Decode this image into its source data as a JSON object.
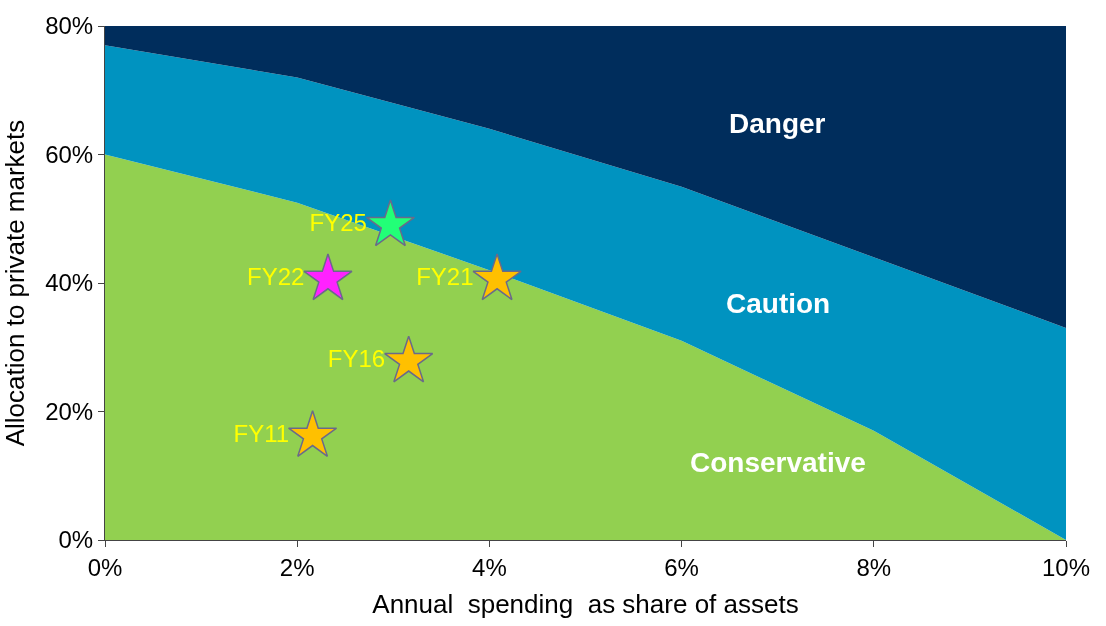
{
  "chart_data": {
    "type": "area",
    "xlabel": "Annual  spending  as share of assets",
    "ylabel": "Allocation to private markets",
    "x": [
      0,
      2,
      4,
      6,
      8,
      10
    ],
    "series": [
      {
        "name": "Conservative",
        "color": "#92d050",
        "values": [
          60,
          52.5,
          42,
          31,
          17,
          0
        ]
      },
      {
        "name": "Caution",
        "color": "#0093c0",
        "values": [
          77,
          72,
          64,
          55,
          44,
          33
        ]
      },
      {
        "name": "Danger",
        "color": "#002d5c",
        "values": [
          80,
          80,
          80,
          80,
          80,
          80
        ]
      },
      {
        "type": "scatter",
        "marker": "star",
        "x": [
          2.97,
          2.32,
          4.08,
          3.16,
          2.16
        ],
        "values": [
          49,
          40.6,
          40.6,
          27.8,
          16.2
        ],
        "colors": [
          "#22ff77",
          "#ff22ff",
          "#ffc000",
          "#ffc000",
          "#ffc000"
        ],
        "value_labels": [
          "FY25",
          "FY22",
          "FY21",
          "FY16",
          "FY11"
        ]
      }
    ],
    "xlim": [
      0,
      10
    ],
    "xticks": [
      {
        "value": 0,
        "label": "0%"
      },
      {
        "value": 2,
        "label": "2%"
      },
      {
        "value": 4,
        "label": "4%"
      },
      {
        "value": 6,
        "label": "6%"
      },
      {
        "value": 8,
        "label": "8%"
      },
      {
        "value": 10,
        "label": "10%"
      }
    ],
    "ylim": [
      0,
      80
    ],
    "yticks": [
      {
        "value": 0,
        "label": "0%"
      },
      {
        "value": 20,
        "label": "20%"
      },
      {
        "value": 40,
        "label": "40%"
      },
      {
        "value": 60,
        "label": "60%"
      },
      {
        "value": 80,
        "label": "80%"
      }
    ],
    "legend": false
  }
}
